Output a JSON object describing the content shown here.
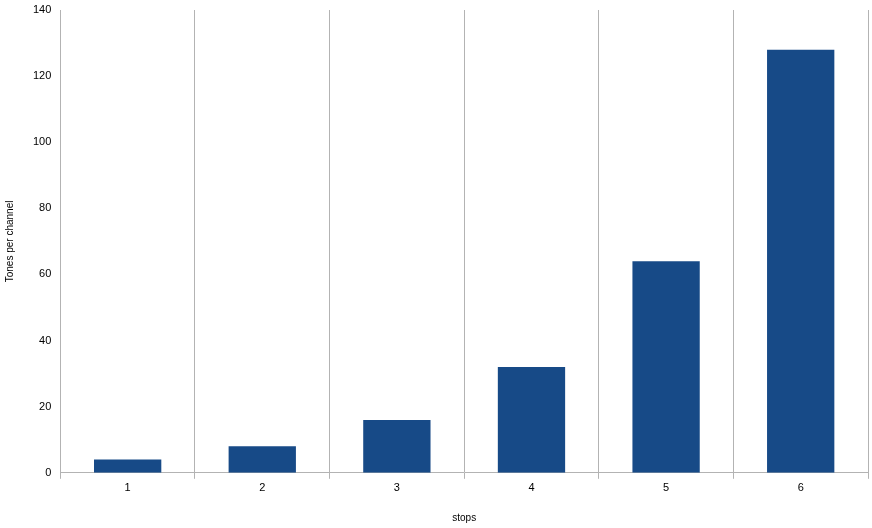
{
  "chart_data": {
    "type": "bar",
    "x_label": "stops",
    "y_label": "Tones per channel",
    "categories": [
      "1",
      "2",
      "3",
      "4",
      "5",
      "6"
    ],
    "values": [
      4,
      8,
      16,
      32,
      64,
      128
    ],
    "color": "#174a87",
    "ylim": [
      0,
      140
    ],
    "yticks": [
      0,
      20,
      40,
      60,
      80,
      100,
      120,
      140
    ],
    "grid": true
  }
}
